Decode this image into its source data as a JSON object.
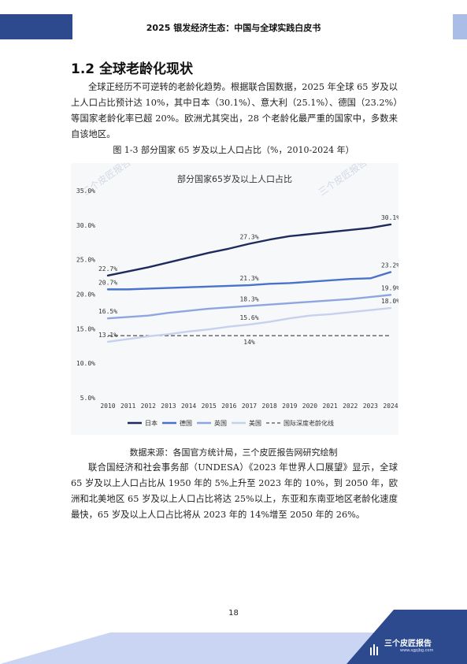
{
  "header": {
    "title": "2025 银发经济生态：中国与全球实践白皮书"
  },
  "section": {
    "title": "1.2  全球老龄化现状"
  },
  "paragraph1": "全球正经历不可逆转的老龄化趋势。根据联合国数据，2025 年全球 65 岁及以上人口占比预计达 10%，其中日本（30.1%）、意大利（25.1%）、德国（23.2%）等国家老龄化率已超 20%。欧洲尤其突出，28 个老龄化最严重的国家中，多数来自该地区。",
  "figure": {
    "caption": "图 1-3  部分国家 65 岁及以上人口占比（%，2010-2024 年）",
    "watermark": "三个皮匠报告"
  },
  "chart_data": {
    "type": "line",
    "title": "部分国家65岁及以上人口占比",
    "x": [
      2010,
      2011,
      2012,
      2013,
      2014,
      2015,
      2016,
      2017,
      2018,
      2019,
      2020,
      2021,
      2022,
      2023,
      2024
    ],
    "ylim": [
      5.0,
      35.0
    ],
    "yticks": [
      "5.0%",
      "10.0%",
      "15.0%",
      "20.0%",
      "25.0%",
      "30.0%",
      "35.0%"
    ],
    "grid": false,
    "legend": "bottom",
    "series": [
      {
        "name": "日本",
        "color": "#1f2a5c",
        "values": [
          22.7,
          23.3,
          23.9,
          24.6,
          25.3,
          26.0,
          26.6,
          27.3,
          27.9,
          28.4,
          28.7,
          29.0,
          29.3,
          29.6,
          30.1
        ]
      },
      {
        "name": "德国",
        "color": "#4a72cc",
        "values": [
          20.7,
          20.7,
          20.8,
          20.9,
          21.0,
          21.1,
          21.2,
          21.3,
          21.5,
          21.6,
          21.8,
          22.0,
          22.2,
          22.3,
          23.2
        ]
      },
      {
        "name": "英国",
        "color": "#8ea6e0",
        "values": [
          16.5,
          16.7,
          16.9,
          17.3,
          17.6,
          17.9,
          18.1,
          18.3,
          18.5,
          18.7,
          18.9,
          19.1,
          19.3,
          19.6,
          19.9
        ]
      },
      {
        "name": "美国",
        "color": "#c6d1ee",
        "values": [
          13.1,
          13.5,
          13.9,
          14.2,
          14.6,
          14.9,
          15.3,
          15.6,
          16.0,
          16.5,
          16.9,
          17.1,
          17.4,
          17.7,
          18.0
        ]
      }
    ],
    "reference": {
      "name": "国际深度老龄化线",
      "value": 14,
      "label": "14%"
    },
    "data_labels": [
      {
        "series": 0,
        "index": 0,
        "text": "22.7%"
      },
      {
        "series": 0,
        "index": 7,
        "text": "27.3%"
      },
      {
        "series": 0,
        "index": 14,
        "text": "30.1%"
      },
      {
        "series": 1,
        "index": 0,
        "text": "20.7%"
      },
      {
        "series": 1,
        "index": 7,
        "text": "21.3%"
      },
      {
        "series": 1,
        "index": 14,
        "text": "23.2%"
      },
      {
        "series": 2,
        "index": 0,
        "text": "16.5%"
      },
      {
        "series": 2,
        "index": 7,
        "text": "18.3%"
      },
      {
        "series": 2,
        "index": 14,
        "text": "19.9%"
      },
      {
        "series": 3,
        "index": 0,
        "text": "13.1%"
      },
      {
        "series": 3,
        "index": 7,
        "text": "15.6%"
      },
      {
        "series": 3,
        "index": 14,
        "text": "18.0%"
      }
    ]
  },
  "source": "数据来源：各国官方统计局，三个皮匠报告网研究绘制",
  "paragraph2": "联合国经济和社会事务部（UNDESA）《2023 年世界人口展望》显示，全球 65 岁及以上人口占比从 1950 年的 5%上升至 2023 年的 10%，到 2050 年，欧洲和北美地区 65 岁及以上人口占比将达 25%以上，东亚和东南亚地区老龄化速度最快，65 岁及以上人口占比将从 2023 年的 14%增至 2050 年的 26%。",
  "page_number": "18",
  "footer": {
    "logo_text": "三个皮匠报告",
    "logo_url": "www.sgpjbg.com"
  },
  "colors": {
    "header_block": "#2d4a8f",
    "header_block_light": "#a9bde6",
    "footer_dark": "#2d4a8f",
    "footer_light": "#c9d5f2"
  }
}
